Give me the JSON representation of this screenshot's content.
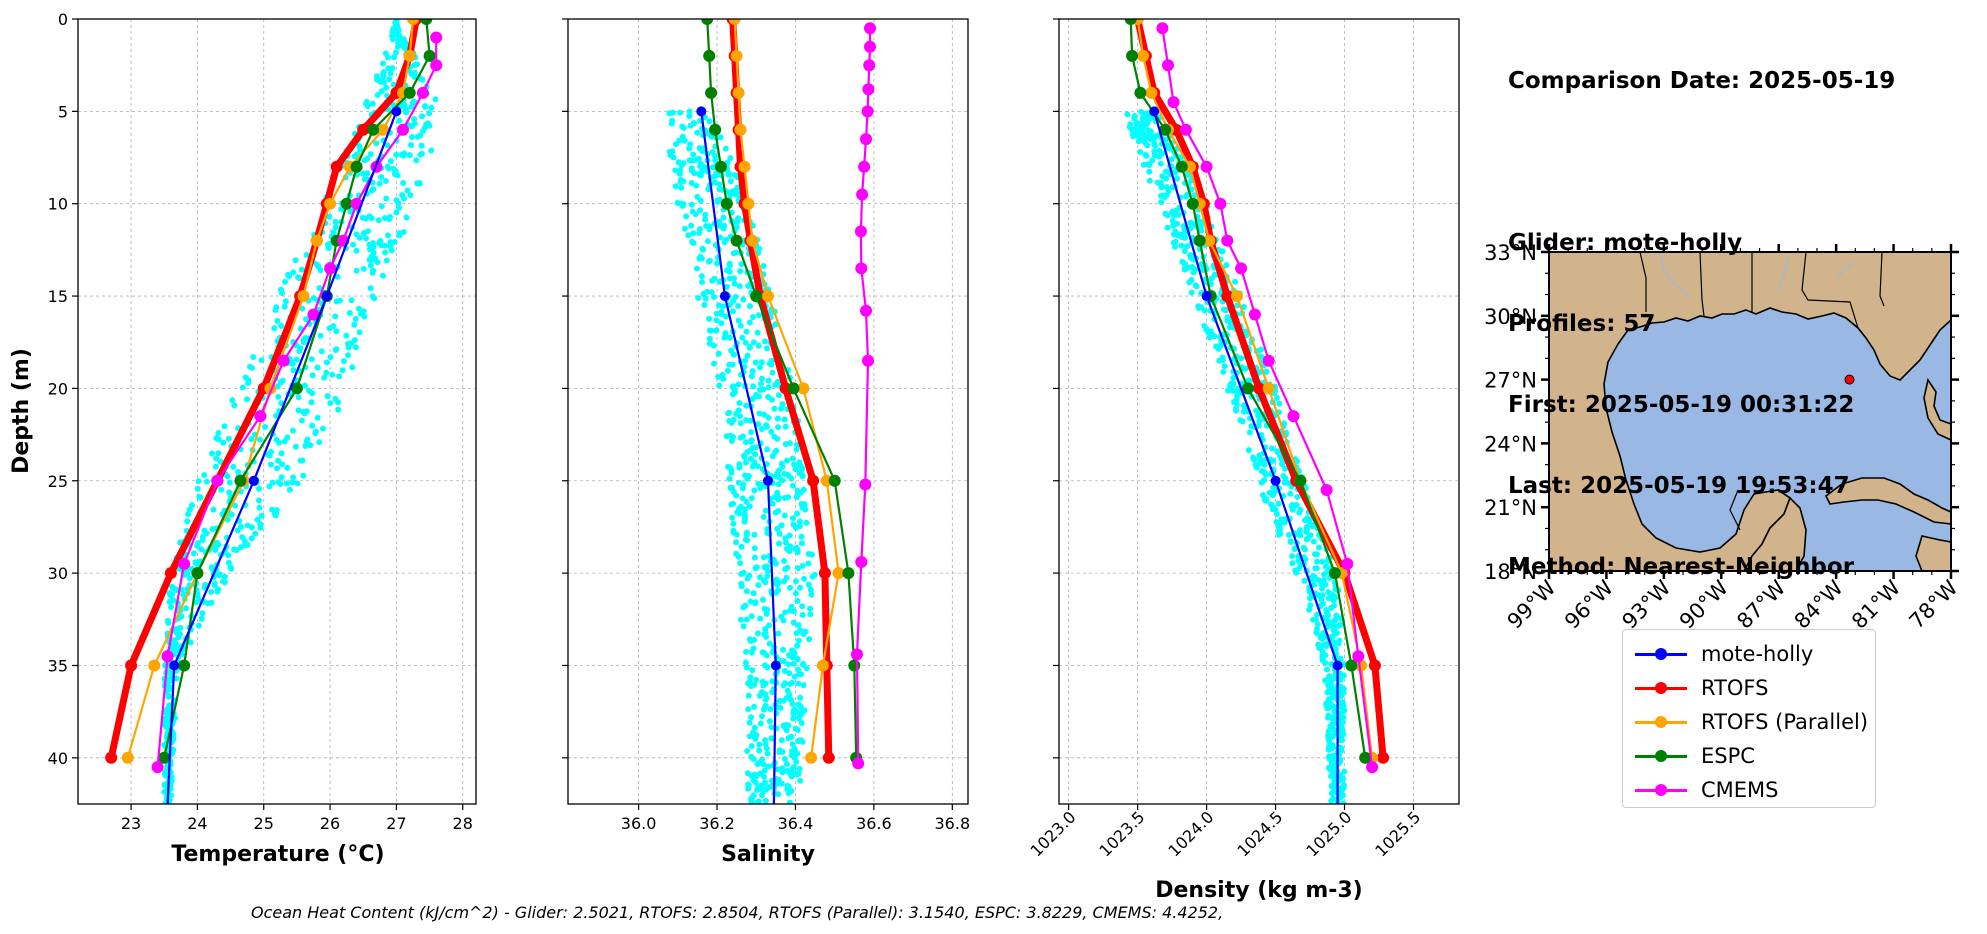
{
  "info": {
    "comparison_date": "Comparison Date: 2025-05-19",
    "glider": "Glider: mote-holly",
    "profiles": "Profiles: 57",
    "first": "First: 2025-05-19 00:31:22",
    "last": "Last: 2025-05-19 19:53:47",
    "method": "Method: Nearest-Neighbor"
  },
  "ohc_text": "Ocean Heat Content (kJ/cm^2) - Glider: 2.5021,  RTOFS: 2.8504,  RTOFS (Parallel): 3.1540,  ESPC: 3.8229,  CMEMS: 4.4252,",
  "colors": {
    "glider": "#0000ff",
    "rtofs": "#ff0000",
    "rtofs_parallel": "#ffa500",
    "espc": "#008000",
    "cmems": "#ff00ff",
    "scatter": "#00ffff",
    "ocean": "#99b8e3",
    "land": "#d2b48c"
  },
  "legend": [
    {
      "name": "mote-holly",
      "color": "#0000ff"
    },
    {
      "name": "RTOFS",
      "color": "#ff0000"
    },
    {
      "name": "RTOFS (Parallel)",
      "color": "#ffa500"
    },
    {
      "name": "ESPC",
      "color": "#008000"
    },
    {
      "name": "CMEMS",
      "color": "#ff00ff"
    }
  ],
  "chart_data": [
    {
      "type": "line",
      "id": "temperature",
      "xlabel": "Temperature (°C)",
      "ylabel": "Depth (m)",
      "xlim": [
        22.2,
        28.2
      ],
      "ylim": [
        42.5,
        0
      ],
      "xticks": [
        23,
        24,
        25,
        26,
        27,
        28
      ],
      "yticks": [
        0,
        5,
        10,
        15,
        20,
        25,
        30,
        35,
        40
      ],
      "grid": true,
      "scatter_band": [
        [
          0,
          27.0,
          27.0
        ],
        [
          5,
          26.5,
          27.7
        ],
        [
          10,
          25.9,
          27.3
        ],
        [
          15,
          25.2,
          26.7
        ],
        [
          20,
          24.6,
          26.3
        ],
        [
          25,
          24.0,
          25.6
        ],
        [
          30,
          23.6,
          24.5
        ],
        [
          35,
          23.5,
          23.7
        ],
        [
          42.5,
          23.5,
          23.6
        ]
      ],
      "series": [
        {
          "name": "mote-holly",
          "depth": [
            5,
            15,
            25,
            35,
            42.5
          ],
          "values": [
            27.0,
            25.95,
            24.85,
            23.65,
            23.55
          ],
          "markers": [
            27.0,
            25.95,
            24.85,
            23.65
          ]
        },
        {
          "name": "RTOFS",
          "depth": [
            0,
            2,
            4,
            6,
            8,
            10,
            12,
            15,
            20,
            25,
            30,
            35,
            40
          ],
          "values": [
            27.3,
            27.2,
            27.0,
            26.5,
            26.1,
            25.95,
            25.8,
            25.55,
            25.0,
            24.3,
            23.6,
            23.0,
            22.7
          ]
        },
        {
          "name": "RTOFS (Parallel)",
          "depth": [
            0,
            2,
            4,
            6,
            8,
            10,
            12,
            15,
            20,
            25,
            30,
            35,
            40
          ],
          "values": [
            27.25,
            27.2,
            27.1,
            26.8,
            26.3,
            26.0,
            25.8,
            25.6,
            25.1,
            24.7,
            24.0,
            23.35,
            22.95
          ]
        },
        {
          "name": "ESPC",
          "depth": [
            0,
            2,
            4,
            6,
            8,
            10,
            12,
            15,
            20,
            25,
            30,
            35,
            40
          ],
          "values": [
            27.45,
            27.5,
            27.2,
            26.65,
            26.4,
            26.25,
            26.1,
            25.95,
            25.5,
            24.65,
            24.0,
            23.8,
            23.5
          ]
        },
        {
          "name": "CMEMS",
          "depth": [
            1,
            2.5,
            4,
            6,
            8,
            10,
            12,
            13.5,
            16,
            18.5,
            21.5,
            25,
            29.5,
            34.5,
            40.5
          ],
          "values": [
            27.6,
            27.6,
            27.4,
            27.1,
            26.7,
            26.4,
            26.2,
            26.0,
            25.75,
            25.3,
            24.95,
            24.3,
            23.8,
            23.55,
            23.4
          ]
        }
      ]
    },
    {
      "type": "line",
      "id": "salinity",
      "xlabel": "Salinity",
      "ylim": [
        42.5,
        0
      ],
      "xlim": [
        35.82,
        36.84
      ],
      "xticks": [
        36.0,
        36.2,
        36.4,
        36.6,
        36.8
      ],
      "grid": true,
      "scatter_band": [
        [
          5,
          36.07,
          36.2
        ],
        [
          10,
          36.09,
          36.28
        ],
        [
          15,
          36.15,
          36.34
        ],
        [
          20,
          36.2,
          36.4
        ],
        [
          25,
          36.23,
          36.42
        ],
        [
          30,
          36.25,
          36.45
        ],
        [
          35,
          36.27,
          36.43
        ],
        [
          42.5,
          36.28,
          36.41
        ]
      ],
      "series": [
        {
          "name": "mote-holly",
          "depth": [
            5,
            15,
            25,
            35,
            42.5
          ],
          "values": [
            36.16,
            36.22,
            36.33,
            36.35,
            36.345
          ],
          "markers": [
            36.16,
            36.22,
            36.33,
            36.35
          ]
        },
        {
          "name": "RTOFS",
          "depth": [
            0,
            2,
            4,
            6,
            8,
            10,
            12,
            15,
            20,
            25,
            30,
            35,
            40
          ],
          "values": [
            36.24,
            36.245,
            36.25,
            36.255,
            36.26,
            36.27,
            36.285,
            36.31,
            36.375,
            36.445,
            36.475,
            36.48,
            36.485
          ]
        },
        {
          "name": "RTOFS (Parallel)",
          "depth": [
            0,
            2,
            4,
            6,
            8,
            10,
            12,
            15,
            20,
            25,
            30,
            35,
            40
          ],
          "values": [
            36.245,
            36.25,
            36.255,
            36.26,
            36.27,
            36.28,
            36.29,
            36.33,
            36.42,
            36.48,
            36.51,
            36.47,
            36.44
          ]
        },
        {
          "name": "ESPC",
          "depth": [
            0,
            2,
            4,
            6,
            8,
            10,
            12,
            15,
            20,
            25,
            30,
            35,
            40
          ],
          "values": [
            36.175,
            36.18,
            36.185,
            36.195,
            36.21,
            36.225,
            36.25,
            36.3,
            36.395,
            36.5,
            36.535,
            36.55,
            36.555
          ]
        },
        {
          "name": "CMEMS",
          "depth": [
            0.5,
            1.5,
            2.5,
            3.8,
            5,
            6.5,
            8,
            9.5,
            11.5,
            13.5,
            15.8,
            18.5,
            25.2,
            29.4,
            34.4,
            40.3
          ],
          "values": [
            36.59,
            36.59,
            36.588,
            36.586,
            36.584,
            36.58,
            36.575,
            36.57,
            36.567,
            36.568,
            36.58,
            36.585,
            36.578,
            36.568,
            36.557,
            36.56
          ]
        }
      ]
    },
    {
      "type": "line",
      "id": "density",
      "xlabel": "Density (kg m-3)",
      "ylim": [
        42.5,
        0
      ],
      "xlim": [
        1022.93,
        1025.83
      ],
      "xticks": [
        1023.0,
        1023.5,
        1024.0,
        1024.5,
        1025.0,
        1025.5
      ],
      "grid": true,
      "scatter_band": [
        [
          5,
          1023.4,
          1023.65
        ],
        [
          10,
          1023.65,
          1024.0
        ],
        [
          15,
          1023.9,
          1024.25
        ],
        [
          20,
          1024.15,
          1024.5
        ],
        [
          25,
          1024.35,
          1024.7
        ],
        [
          30,
          1024.65,
          1024.95
        ],
        [
          35,
          1024.85,
          1025.0
        ],
        [
          42.5,
          1024.9,
          1025.0
        ]
      ],
      "series": [
        {
          "name": "mote-holly",
          "depth": [
            5,
            15,
            25,
            35,
            42.5
          ],
          "values": [
            1023.62,
            1024.0,
            1024.5,
            1024.95,
            1024.95
          ],
          "markers": [
            1023.62,
            1024.0,
            1024.5,
            1024.95
          ]
        },
        {
          "name": "RTOFS",
          "depth": [
            0,
            2,
            4,
            6,
            8,
            10,
            12,
            15,
            20,
            25,
            30,
            35,
            40
          ],
          "values": [
            1023.5,
            1023.56,
            1023.62,
            1023.78,
            1023.9,
            1023.98,
            1024.03,
            1024.15,
            1024.38,
            1024.65,
            1025.0,
            1025.22,
            1025.28
          ]
        },
        {
          "name": "RTOFS (Parallel)",
          "depth": [
            0,
            2,
            4,
            6,
            8,
            10,
            12,
            15,
            20,
            25,
            30,
            35,
            40
          ],
          "values": [
            1023.5,
            1023.54,
            1023.6,
            1023.72,
            1023.88,
            1023.95,
            1024.02,
            1024.22,
            1024.45,
            1024.68,
            1024.98,
            1025.12,
            1025.2
          ]
        },
        {
          "name": "ESPC",
          "depth": [
            0,
            2,
            4,
            6,
            8,
            10,
            12,
            15,
            20,
            25,
            30,
            35,
            40
          ],
          "values": [
            1023.45,
            1023.46,
            1023.52,
            1023.7,
            1023.82,
            1023.9,
            1023.95,
            1024.03,
            1024.3,
            1024.68,
            1024.93,
            1025.05,
            1025.15
          ]
        },
        {
          "name": "CMEMS",
          "depth": [
            0.5,
            2.5,
            4.5,
            6,
            8,
            10,
            12,
            13.5,
            16,
            18.5,
            21.5,
            25.5,
            29.5,
            34.5,
            40.5
          ],
          "values": [
            1023.68,
            1023.72,
            1023.76,
            1023.85,
            1024.0,
            1024.1,
            1024.15,
            1024.25,
            1024.35,
            1024.45,
            1024.63,
            1024.87,
            1025.02,
            1025.1,
            1025.2
          ]
        }
      ]
    },
    {
      "type": "map",
      "id": "location-map",
      "lon_range": [
        -99,
        -78
      ],
      "lat_range": [
        18,
        33
      ],
      "xticks": [
        "99°W",
        "96°W",
        "93°W",
        "90°W",
        "87°W",
        "84°W",
        "81°W",
        "78°W"
      ],
      "yticks": [
        "33°N",
        "30°N",
        "27°N",
        "24°N",
        "21°N",
        "18°N"
      ],
      "glider_position": {
        "lon": -83.3,
        "lat": 27.0
      }
    }
  ]
}
